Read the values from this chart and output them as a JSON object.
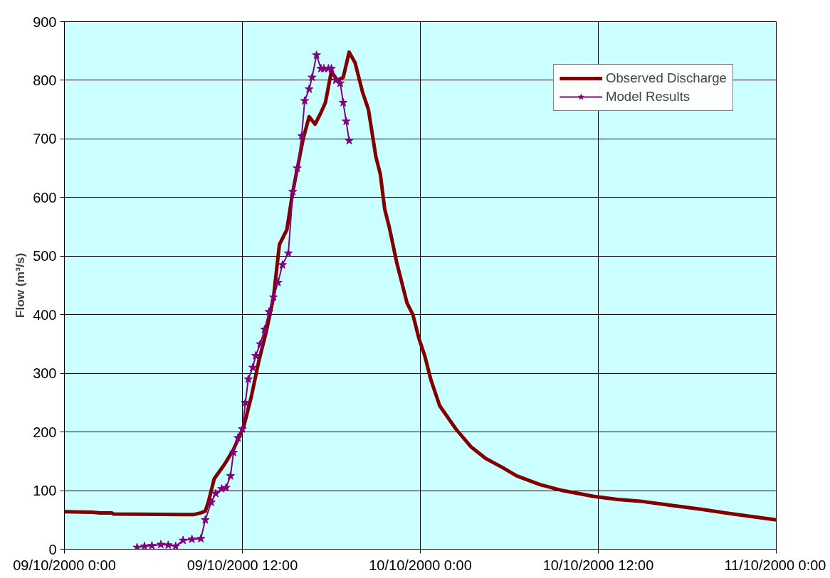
{
  "chart_data": {
    "type": "line",
    "ylabel": "Flow (m³/s)",
    "xlim": [
      "2000-10-09T00:00",
      "2000-10-11T00:00"
    ],
    "xticks": [
      {
        "value": "2000-10-09T00:00",
        "label": "09/10/2000 0:00"
      },
      {
        "value": "2000-10-09T12:00",
        "label": "09/10/2000 12:00"
      },
      {
        "value": "2000-10-10T00:00",
        "label": "10/10/2000 0:00"
      },
      {
        "value": "2000-10-10T12:00",
        "label": "10/10/2000 12:00"
      },
      {
        "value": "2000-10-11T00:00",
        "label": "11/10/2000 0:00"
      }
    ],
    "ylim": [
      0,
      900
    ],
    "yticks": [
      0,
      100,
      200,
      300,
      400,
      500,
      600,
      700,
      800,
      900
    ],
    "grid": true,
    "legend": "top right",
    "series": [
      {
        "name": "Observed Discharge",
        "color": "#800000",
        "marker": "none",
        "x": [
          "2000-10-09T00:00",
          "2000-10-09T01:54",
          "2000-10-09T02:24",
          "2000-10-09T03:12",
          "2000-10-09T03:18",
          "2000-10-09T08:42",
          "2000-10-09T09:12",
          "2000-10-09T09:30",
          "2000-10-09T09:42",
          "2000-10-09T10:06",
          "2000-10-09T10:48",
          "2000-10-09T11:24",
          "2000-10-09T12:06",
          "2000-10-09T12:36",
          "2000-10-09T13:06",
          "2000-10-09T13:36",
          "2000-10-09T14:06",
          "2000-10-09T14:30",
          "2000-10-09T15:00",
          "2000-10-09T15:24",
          "2000-10-09T16:06",
          "2000-10-09T16:30",
          "2000-10-09T16:54",
          "2000-10-09T17:18",
          "2000-10-09T17:36",
          "2000-10-09T18:00",
          "2000-10-09T18:24",
          "2000-10-09T18:48",
          "2000-10-09T19:12",
          "2000-10-09T19:36",
          "2000-10-09T20:06",
          "2000-10-09T20:30",
          "2000-10-09T21:00",
          "2000-10-09T21:18",
          "2000-10-09T21:36",
          "2000-10-09T21:54",
          "2000-10-09T22:24",
          "2000-10-09T22:42",
          "2000-10-09T23:06",
          "2000-10-09T23:30",
          "2000-10-09T23:54",
          "2000-10-10T00:18",
          "2000-10-10T00:42",
          "2000-10-10T01:18",
          "2000-10-10T02:24",
          "2000-10-10T03:24",
          "2000-10-10T04:24",
          "2000-10-10T05:30",
          "2000-10-10T06:30",
          "2000-10-10T08:06",
          "2000-10-10T09:36",
          "2000-10-10T11:42",
          "2000-10-10T13:18",
          "2000-10-10T14:48",
          "2000-10-10T16:54",
          "2000-10-10T19:00",
          "2000-10-10T21:06",
          "2000-10-10T22:36",
          "2000-10-11T00:00"
        ],
        "values": [
          64,
          63,
          62,
          62,
          60,
          59,
          62,
          65,
          80,
          120,
          145,
          170,
          210,
          260,
          320,
          370,
          430,
          520,
          545,
          610,
          700,
          738,
          725,
          745,
          762,
          815,
          800,
          805,
          848,
          830,
          780,
          750,
          670,
          640,
          580,
          550,
          490,
          460,
          420,
          400,
          360,
          330,
          290,
          245,
          205,
          175,
          155,
          140,
          125,
          110,
          100,
          90,
          85,
          82,
          75,
          68,
          60,
          55,
          50
        ]
      },
      {
        "name": "Model Results",
        "color": "#800080",
        "marker": "star",
        "x": [
          "2000-10-09T04:54",
          "2000-10-09T05:24",
          "2000-10-09T05:54",
          "2000-10-09T06:30",
          "2000-10-09T07:00",
          "2000-10-09T07:30",
          "2000-10-09T08:00",
          "2000-10-09T08:36",
          "2000-10-09T09:12",
          "2000-10-09T09:30",
          "2000-10-09T09:54",
          "2000-10-09T10:12",
          "2000-10-09T10:36",
          "2000-10-09T10:54",
          "2000-10-09T11:12",
          "2000-10-09T11:24",
          "2000-10-09T11:42",
          "2000-10-09T12:00",
          "2000-10-09T12:12",
          "2000-10-09T12:24",
          "2000-10-09T12:42",
          "2000-10-09T12:54",
          "2000-10-09T13:12",
          "2000-10-09T13:30",
          "2000-10-09T13:48",
          "2000-10-09T14:06",
          "2000-10-09T14:24",
          "2000-10-09T14:42",
          "2000-10-09T15:06",
          "2000-10-09T15:24",
          "2000-10-09T15:42",
          "2000-10-09T16:00",
          "2000-10-09T16:12",
          "2000-10-09T16:30",
          "2000-10-09T16:42",
          "2000-10-09T17:00",
          "2000-10-09T17:18",
          "2000-10-09T17:30",
          "2000-10-09T17:48",
          "2000-10-09T18:00",
          "2000-10-09T18:18",
          "2000-10-09T18:36",
          "2000-10-09T18:48",
          "2000-10-09T19:00",
          "2000-10-09T19:12"
        ],
        "values": [
          3,
          5,
          6,
          8,
          7,
          5,
          15,
          17,
          18,
          50,
          80,
          95,
          103,
          105,
          125,
          165,
          190,
          205,
          250,
          290,
          310,
          330,
          350,
          375,
          405,
          430,
          455,
          485,
          505,
          610,
          650,
          705,
          765,
          785,
          805,
          843,
          820,
          820,
          820,
          820,
          800,
          795,
          762,
          730,
          697
        ]
      }
    ]
  }
}
